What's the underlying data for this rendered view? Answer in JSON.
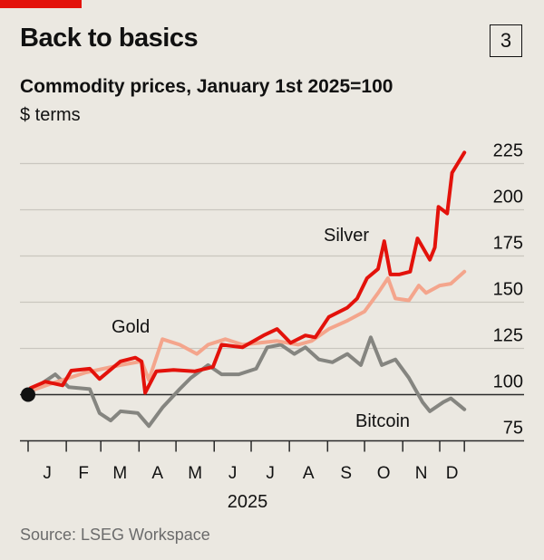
{
  "header": {
    "title": "Back to basics",
    "chart_number": "3",
    "subtitle": "Commodity prices, January 1st 2025=100",
    "unit": "$ terms"
  },
  "source": "Source: LSEG Workspace",
  "colors": {
    "silver": "#e3120b",
    "gold": "#f4a58c",
    "bitcoin": "#858580",
    "accent": "#e3120b"
  },
  "chart_data": {
    "type": "line",
    "title": "Commodity prices, January 1st 2025=100",
    "ylabel": "$ terms",
    "xlabel": "2025",
    "x_unit": "days since January 1st 2025",
    "ylim": [
      75,
      225
    ],
    "yticks": [
      75,
      100,
      125,
      150,
      175,
      200,
      225
    ],
    "xtick_labels": [
      "J",
      "F",
      "M",
      "A",
      "M",
      "J",
      "J",
      "A",
      "S",
      "O",
      "N",
      "D"
    ],
    "month_starts": [
      0,
      31,
      59,
      90,
      120,
      151,
      181,
      212,
      243,
      273,
      304,
      334,
      354
    ],
    "year_label": "2025",
    "baseline": 100,
    "series": [
      {
        "name": "Silver",
        "label": "Silver",
        "color": "#e3120b",
        "points": [
          [
            0,
            100
          ],
          [
            2,
            103.6
          ],
          [
            14,
            107
          ],
          [
            28,
            105
          ],
          [
            35,
            113
          ],
          [
            50,
            114
          ],
          [
            58,
            108.5
          ],
          [
            75,
            118
          ],
          [
            87,
            120
          ],
          [
            92,
            118
          ],
          [
            95,
            101
          ],
          [
            104,
            112.6
          ],
          [
            118,
            113.4
          ],
          [
            135,
            112.6
          ],
          [
            150,
            115
          ],
          [
            157,
            127
          ],
          [
            174,
            125.6
          ],
          [
            191,
            132
          ],
          [
            202,
            135.5
          ],
          [
            213,
            128
          ],
          [
            225,
            132
          ],
          [
            233,
            131
          ],
          [
            244,
            142
          ],
          [
            259,
            147
          ],
          [
            267,
            152
          ],
          [
            275,
            163
          ],
          [
            284,
            168
          ],
          [
            289,
            183
          ],
          [
            294,
            165
          ],
          [
            301,
            165
          ],
          [
            310,
            166.5
          ],
          [
            316,
            184.5
          ],
          [
            326,
            173
          ],
          [
            330,
            179.6
          ],
          [
            333,
            201.6
          ],
          [
            340,
            198
          ],
          [
            344,
            220
          ],
          [
            354,
            231
          ]
        ]
      },
      {
        "name": "Gold",
        "label": "Gold",
        "color": "#f4a58c",
        "points": [
          [
            0,
            100
          ],
          [
            2,
            102
          ],
          [
            19,
            106
          ],
          [
            47,
            112
          ],
          [
            75,
            116
          ],
          [
            92,
            118
          ],
          [
            98,
            108
          ],
          [
            109,
            130
          ],
          [
            123,
            127
          ],
          [
            137,
            122
          ],
          [
            146,
            127
          ],
          [
            160,
            130
          ],
          [
            174,
            127
          ],
          [
            202,
            129
          ],
          [
            219,
            127
          ],
          [
            230,
            129
          ],
          [
            244,
            135.5
          ],
          [
            259,
            140
          ],
          [
            273,
            145
          ],
          [
            284,
            155
          ],
          [
            292,
            163
          ],
          [
            298,
            152
          ],
          [
            309,
            151
          ],
          [
            317,
            159
          ],
          [
            323,
            155
          ],
          [
            334,
            159
          ],
          [
            343,
            160
          ],
          [
            354,
            166.5
          ]
        ]
      },
      {
        "name": "Bitcoin",
        "label": "Bitcoin",
        "color": "#858580",
        "points": [
          [
            0,
            100
          ],
          [
            2,
            101
          ],
          [
            11,
            106
          ],
          [
            22,
            111
          ],
          [
            33,
            104
          ],
          [
            50,
            103
          ],
          [
            58,
            90
          ],
          [
            67,
            86
          ],
          [
            75,
            91
          ],
          [
            89,
            90
          ],
          [
            98,
            83
          ],
          [
            109,
            93
          ],
          [
            123,
            103
          ],
          [
            132,
            109
          ],
          [
            146,
            116
          ],
          [
            157,
            111
          ],
          [
            171,
            111
          ],
          [
            185,
            114
          ],
          [
            194,
            125.6
          ],
          [
            205,
            127
          ],
          [
            216,
            122
          ],
          [
            225,
            125.6
          ],
          [
            236,
            119
          ],
          [
            247,
            117.5
          ],
          [
            259,
            122
          ],
          [
            270,
            116
          ],
          [
            278,
            131
          ],
          [
            287,
            116
          ],
          [
            298,
            119
          ],
          [
            309,
            109
          ],
          [
            320,
            96
          ],
          [
            326,
            91
          ],
          [
            337,
            96
          ],
          [
            343,
            98
          ],
          [
            354,
            92
          ]
        ]
      }
    ]
  }
}
